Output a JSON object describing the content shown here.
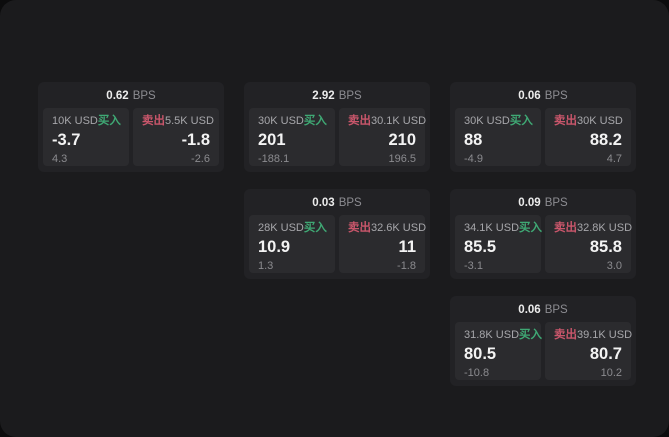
{
  "labels": {
    "bps_unit": "BPS",
    "buy": "买入",
    "sell": "卖出"
  },
  "colors": {
    "buy_green": "#3fa874",
    "sell_red": "#c9566b",
    "panel_background": "#1b1b1d",
    "card_background": "#222225",
    "pane_background": "#2b2b2e"
  },
  "cards": [
    {
      "bps": "0.62",
      "grid": {
        "col": 0,
        "row": 0
      },
      "buy": {
        "amount": "10K USD",
        "value": "-3.7",
        "sub": "4.3"
      },
      "sell": {
        "amount": "5.5K USD",
        "value": "-1.8",
        "sub": "-2.6"
      }
    },
    {
      "bps": "2.92",
      "grid": {
        "col": 1,
        "row": 0
      },
      "buy": {
        "amount": "30K USD",
        "value": "201",
        "sub": "-188.1"
      },
      "sell": {
        "amount": "30.1K USD",
        "value": "210",
        "sub": "196.5"
      }
    },
    {
      "bps": "0.06",
      "grid": {
        "col": 2,
        "row": 0
      },
      "buy": {
        "amount": "30K USD",
        "value": "88",
        "sub": "-4.9"
      },
      "sell": {
        "amount": "30K USD",
        "value": "88.2",
        "sub": "4.7"
      }
    },
    {
      "bps": "0.03",
      "grid": {
        "col": 1,
        "row": 1
      },
      "buy": {
        "amount": "28K USD",
        "value": "10.9",
        "sub": "1.3"
      },
      "sell": {
        "amount": "32.6K USD",
        "value": "11",
        "sub": "-1.8"
      }
    },
    {
      "bps": "0.09",
      "grid": {
        "col": 2,
        "row": 1
      },
      "buy": {
        "amount": "34.1K USD",
        "value": "85.5",
        "sub": "-3.1"
      },
      "sell": {
        "amount": "32.8K USD",
        "value": "85.8",
        "sub": "3.0"
      }
    },
    {
      "bps": "0.06",
      "grid": {
        "col": 2,
        "row": 2
      },
      "buy": {
        "amount": "31.8K USD",
        "value": "80.5",
        "sub": "-10.8"
      },
      "sell": {
        "amount": "39.1K USD",
        "value": "80.7",
        "sub": "10.2"
      }
    }
  ]
}
